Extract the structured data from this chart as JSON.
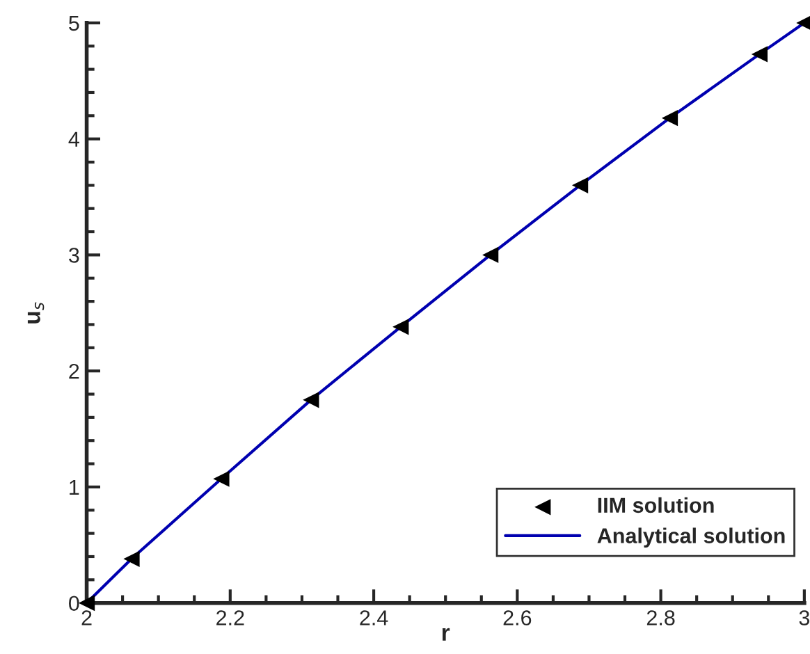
{
  "chart_data": {
    "type": "line",
    "xlabel": "r",
    "ylabel": "u$_{s}$",
    "xlim": [
      2,
      3
    ],
    "ylim": [
      0,
      5
    ],
    "xticks": [
      {
        "value": 2,
        "label": "2"
      },
      2.2,
      2.4,
      2.6,
      2.8,
      {
        "value": 3,
        "label": "3"
      }
    ],
    "yticks": [
      0,
      1,
      2,
      3,
      4,
      5
    ],
    "grid": false,
    "legend": "bottom right",
    "series": [
      {
        "name": "IIM solution",
        "type": "scatter",
        "color": "#000000",
        "marker": "triangle",
        "x": [
          2,
          2.0625,
          2.1875,
          2.3125,
          2.4375,
          2.5625,
          2.6875,
          2.8125,
          2.9375,
          3
        ],
        "values": [
          0,
          0.38,
          1.07,
          1.75,
          2.38,
          3.0,
          3.6,
          4.18,
          4.73,
          5.0
        ]
      },
      {
        "name": "Analytical solution",
        "color": "#0000b0",
        "marker": "none",
        "line_style": "solid",
        "x": [
          2,
          2.0625,
          2.1875,
          2.3125,
          2.4375,
          2.5625,
          2.6875,
          2.8125,
          2.9375,
          3
        ],
        "values": [
          0,
          0.38,
          1.07,
          1.75,
          2.38,
          3.0,
          3.6,
          4.18,
          4.73,
          5.0
        ]
      }
    ]
  }
}
